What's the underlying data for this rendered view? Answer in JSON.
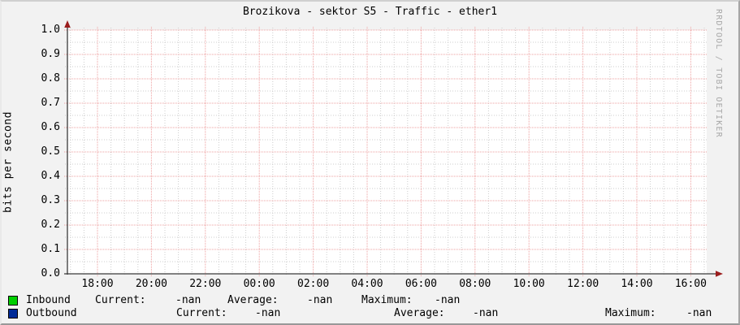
{
  "title": "Brozikova - sektor S5 - Traffic - ether1",
  "watermark": "RRDTOOL / TOBI OETIKER",
  "y_axis_label": "bits per second",
  "chart_data": {
    "type": "line",
    "title": "Brozikova - sektor S5 - Traffic - ether1",
    "xlabel": "",
    "ylabel": "bits per second",
    "ylim": [
      0.0,
      1.0
    ],
    "y_ticks": [
      "1.0",
      "0.9",
      "0.8",
      "0.7",
      "0.6",
      "0.5",
      "0.4",
      "0.3",
      "0.2",
      "0.1",
      "0.0"
    ],
    "x_ticks": [
      "18:00",
      "20:00",
      "22:00",
      "00:00",
      "02:00",
      "04:00",
      "06:00",
      "08:00",
      "10:00",
      "12:00",
      "14:00",
      "16:00"
    ],
    "grid": true,
    "legend_position": "bottom",
    "series": [
      {
        "name": "Inbound",
        "color": "#00CF00",
        "values": [],
        "current": "-nan",
        "average": "-nan",
        "maximum": "-nan"
      },
      {
        "name": "Outbound",
        "color": "#002A97",
        "values": [],
        "current": "-nan",
        "average": "-nan",
        "maximum": "-nan"
      }
    ],
    "note": "no data plotted; all statistics are -nan"
  },
  "legend": {
    "rows": [
      {
        "name": "Inbound",
        "swatch_color": "#00CF00",
        "current_label": "Current:",
        "current_value": "-nan",
        "average_label": "Average:",
        "average_value": "-nan",
        "maximum_label": "Maximum:",
        "maximum_value": "-nan"
      },
      {
        "name": "Outbound",
        "swatch_color": "#002A97",
        "current_label": "Current:",
        "current_value": "-nan",
        "average_label": "Average:",
        "average_value": "-nan",
        "maximum_label": "Maximum:",
        "maximum_value": "-nan"
      }
    ]
  },
  "colors": {
    "background": "#f2f2f2",
    "canvas": "#ffffff",
    "major_grid": "#eea0a0",
    "minor_grid": "#cccccc",
    "axis": "#3a3a3a",
    "arrow": "#9b1d1d",
    "text": "#000000",
    "watermark_text": "#a8a8a8"
  }
}
